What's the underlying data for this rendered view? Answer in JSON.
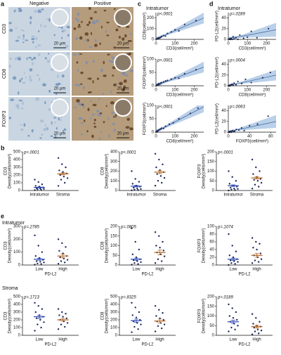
{
  "panel_letters": [
    "a",
    "b",
    "c",
    "d",
    "e"
  ],
  "panel_a": {
    "columns": [
      "Negative",
      "Positive"
    ],
    "rows": [
      "CD3",
      "CD8",
      "FOXP3"
    ],
    "scale_bar": "20 μm"
  },
  "headings": {
    "c": "Intratumor",
    "d": "Intratumor",
    "e_top": "Intratumor",
    "e_bottom": "Stroma"
  },
  "chart_data": [
    {
      "type": "scatter",
      "annotation": "p<.0001",
      "x_label": "CD3(cell/mm²)",
      "y_label": "CD8(cell/mm²)",
      "color": "#1f2a5a",
      "fit_color": "#4a6fa5",
      "band_color": "#a9c4e4",
      "x": [
        5,
        8,
        12,
        15,
        20,
        25,
        30,
        40,
        50,
        60,
        80,
        100,
        120,
        150,
        210
      ],
      "y": [
        3,
        10,
        6,
        15,
        12,
        20,
        28,
        35,
        30,
        55,
        70,
        90,
        80,
        140,
        175
      ],
      "xlim": [
        0,
        250
      ],
      "ylim": [
        0,
        250
      ],
      "xticks": [
        0,
        100,
        200
      ],
      "yticks": [
        0,
        100,
        200
      ],
      "fit": {
        "x": [
          0,
          60,
          250
        ],
        "y": [
          5,
          50,
          200
        ],
        "lower": [
          -10,
          40,
          150
        ],
        "upper": [
          20,
          60,
          250
        ]
      }
    },
    {
      "type": "scatter",
      "annotation": "p<.0001",
      "x_label": "CD3(cell/mm²)",
      "y_label": "FOXP3(cell/mm²)",
      "color": "#1f2a5a",
      "fit_color": "#4a6fa5",
      "band_color": "#a9c4e4",
      "x": [
        5,
        8,
        12,
        15,
        20,
        25,
        30,
        40,
        50,
        60,
        80,
        100,
        120,
        150,
        210
      ],
      "y": [
        2,
        5,
        3,
        8,
        6,
        10,
        12,
        15,
        18,
        20,
        25,
        30,
        28,
        45,
        60
      ],
      "xlim": [
        0,
        250
      ],
      "ylim": [
        0,
        100
      ],
      "xticks": [
        0,
        100,
        200
      ],
      "yticks": [
        0,
        50,
        100
      ],
      "fit": {
        "x": [
          0,
          60,
          250
        ],
        "y": [
          2,
          17,
          70
        ],
        "lower": [
          -5,
          13,
          50
        ],
        "upper": [
          9,
          21,
          90
        ]
      }
    },
    {
      "type": "scatter",
      "annotation": "p<.0001",
      "x_label": "CD8(cell/mm²)",
      "y_label": "FOXP3(cell/mm²)",
      "color": "#1f2a5a",
      "fit_color": "#4a6fa5",
      "band_color": "#a9c4e4",
      "x": [
        2,
        5,
        8,
        10,
        15,
        20,
        25,
        30,
        40,
        50,
        70,
        90,
        120,
        180,
        220
      ],
      "y": [
        1,
        4,
        2,
        6,
        8,
        10,
        12,
        15,
        14,
        22,
        30,
        35,
        50,
        70,
        90
      ],
      "xlim": [
        0,
        250
      ],
      "ylim": [
        0,
        100
      ],
      "xticks": [
        0,
        100,
        200
      ],
      "yticks": [
        0,
        50,
        100
      ],
      "fit": {
        "x": [
          0,
          50,
          250
        ],
        "y": [
          2,
          20,
          95
        ],
        "lower": [
          -5,
          15,
          75
        ],
        "upper": [
          9,
          25,
          115
        ]
      }
    },
    {
      "type": "scatter",
      "annotation": "p=.0289",
      "x_label": "CD3(cell/mm²)",
      "y_label": "PD-L2(cell/mm²)",
      "color": "#1f2a5a",
      "fit_color": "#4a6fa5",
      "band_color": "#a9c4e4",
      "x": [
        5,
        8,
        12,
        15,
        20,
        25,
        30,
        40,
        50,
        60,
        80,
        100,
        120,
        150,
        210
      ],
      "y": [
        0,
        1,
        0,
        2,
        0,
        5,
        1,
        3,
        0,
        8,
        2,
        4,
        15,
        3,
        20
      ],
      "xlim": [
        0,
        250
      ],
      "ylim": [
        0,
        50
      ],
      "xticks": [
        0,
        100,
        200
      ],
      "yticks": [
        0,
        20,
        40
      ],
      "fit": {
        "x": [
          0,
          60,
          250
        ],
        "y": [
          2,
          5,
          18
        ],
        "lower": [
          0,
          3,
          5
        ],
        "upper": [
          4,
          7,
          31
        ]
      }
    },
    {
      "type": "scatter",
      "annotation": "p=.0004",
      "x_label": "CD8(cell/mm²)",
      "y_label": "PD-L2(cell/mm²)",
      "color": "#1f2a5a",
      "fit_color": "#4a6fa5",
      "band_color": "#a9c4e4",
      "x": [
        2,
        5,
        8,
        10,
        15,
        20,
        25,
        30,
        40,
        50,
        70,
        90,
        120,
        180,
        220
      ],
      "y": [
        0,
        0,
        1,
        0,
        2,
        3,
        1,
        5,
        2,
        8,
        4,
        12,
        6,
        15,
        25
      ],
      "xlim": [
        0,
        250
      ],
      "ylim": [
        0,
        50
      ],
      "xticks": [
        0,
        100,
        200
      ],
      "yticks": [
        0,
        20,
        40
      ],
      "fit": {
        "x": [
          0,
          50,
          250
        ],
        "y": [
          1,
          4,
          20
        ],
        "lower": [
          -1,
          3,
          10
        ],
        "upper": [
          3,
          6,
          30
        ]
      }
    },
    {
      "type": "scatter",
      "annotation": "p=.0063",
      "x_label": "FOXP3(cell/mm²)",
      "y_label": "PD-L2(cell/mm²)",
      "color": "#1f2a5a",
      "fit_color": "#4a6fa5",
      "band_color": "#a9c4e4",
      "x": [
        1,
        2,
        3,
        5,
        6,
        8,
        10,
        12,
        15,
        20,
        25,
        30,
        40,
        55,
        75
      ],
      "y": [
        0,
        1,
        0,
        2,
        0,
        3,
        1,
        2,
        5,
        4,
        8,
        3,
        12,
        15,
        30
      ],
      "xlim": [
        0,
        90
      ],
      "ylim": [
        0,
        50
      ],
      "xticks": [
        0,
        40,
        80
      ],
      "yticks": [
        0,
        20,
        40
      ],
      "fit": {
        "x": [
          0,
          15,
          90
        ],
        "y": [
          1,
          4,
          20
        ],
        "lower": [
          -1,
          3,
          8
        ],
        "upper": [
          3,
          6,
          32
        ]
      }
    },
    {
      "type": "dotplot",
      "annotation": "p<.0001",
      "y_label": [
        "CD3",
        "Density(cells/mm²)"
      ],
      "categories": [
        "Intratumor",
        "Stroma"
      ],
      "ylim": [
        0,
        500
      ],
      "yticks": [
        0,
        100,
        200,
        300,
        400,
        500
      ],
      "groups": [
        {
          "color": "#1f2a5a",
          "mean_color": "#2b46b5",
          "values": [
            5,
            10,
            15,
            20,
            25,
            30,
            40,
            50,
            60,
            80,
            110,
            140
          ],
          "mean": 40,
          "sem": 6
        },
        {
          "color": "#1f2a5a",
          "mean_color": "#b5651d",
          "values": [
            60,
            100,
            140,
            160,
            180,
            200,
            220,
            240,
            260,
            300,
            340,
            420
          ],
          "mean": 215,
          "sem": 14
        }
      ]
    },
    {
      "type": "dotplot",
      "annotation": "p<.0001",
      "y_label": [
        "CD8",
        "Density(cells/mm²)"
      ],
      "categories": [
        "Intratumor",
        "Stroma"
      ],
      "ylim": [
        0,
        400
      ],
      "yticks": [
        0,
        100,
        200,
        300,
        400
      ],
      "groups": [
        {
          "color": "#1f2a5a",
          "mean_color": "#2b46b5",
          "values": [
            2,
            5,
            10,
            15,
            20,
            30,
            40,
            50,
            70,
            90,
            120,
            200
          ],
          "mean": 45,
          "sem": 8
        },
        {
          "color": "#1f2a5a",
          "mean_color": "#b5651d",
          "values": [
            50,
            80,
            100,
            130,
            150,
            170,
            190,
            210,
            240,
            270,
            320,
            380
          ],
          "mean": 190,
          "sem": 15
        }
      ]
    },
    {
      "type": "dotplot",
      "annotation": "p<.0001",
      "y_label": [
        "FOXP3",
        "Density(cells/mm²)"
      ],
      "categories": [
        "Intratumor",
        "Stroma"
      ],
      "ylim": [
        0,
        200
      ],
      "yticks": [
        0,
        50,
        100,
        150,
        200
      ],
      "groups": [
        {
          "color": "#1f2a5a",
          "mean_color": "#2b46b5",
          "values": [
            0,
            2,
            5,
            8,
            10,
            15,
            20,
            25,
            35,
            50,
            70,
            100
          ],
          "mean": 25,
          "sem": 4
        },
        {
          "color": "#1f2a5a",
          "mean_color": "#b5651d",
          "values": [
            10,
            20,
            30,
            40,
            50,
            55,
            60,
            70,
            85,
            100,
            120,
            160
          ],
          "mean": 65,
          "sem": 6
        }
      ]
    },
    {
      "type": "dotplot",
      "annotation": "p=.2785",
      "y_label": [
        "CD3",
        "Density(cells/mm²)"
      ],
      "x_label": "PD-L2",
      "categories": [
        "Low",
        "High"
      ],
      "ylim": [
        0,
        300
      ],
      "yticks": [
        0,
        100,
        200,
        300
      ],
      "groups": [
        {
          "color": "#1f2a5a",
          "mean_color": "#2b46b5",
          "values": [
            3,
            8,
            12,
            20,
            25,
            30,
            40,
            55,
            70,
            100,
            150,
            230
          ],
          "mean": 45,
          "sem": 8
        },
        {
          "color": "#1f2a5a",
          "mean_color": "#b5651d",
          "values": [
            10,
            20,
            30,
            40,
            50,
            60,
            70,
            90,
            110,
            140,
            170,
            200
          ],
          "mean": 70,
          "sem": 14
        }
      ]
    },
    {
      "type": "dotplot",
      "annotation": "p=.0805",
      "y_label": [
        "CD8",
        "Density(cells/mm²)"
      ],
      "x_label": "PD-L2",
      "categories": [
        "Low",
        "High"
      ],
      "ylim": [
        0,
        200
      ],
      "yticks": [
        0,
        50,
        100,
        150,
        200
      ],
      "groups": [
        {
          "color": "#1f2a5a",
          "mean_color": "#2b46b5",
          "values": [
            2,
            5,
            10,
            15,
            20,
            25,
            30,
            40,
            55,
            80,
            120,
            190
          ],
          "mean": 30,
          "sem": 6
        },
        {
          "color": "#1f2a5a",
          "mean_color": "#b5651d",
          "values": [
            10,
            20,
            30,
            45,
            55,
            65,
            75,
            90,
            100,
            120,
            150,
            170
          ],
          "mean": 65,
          "sem": 12
        }
      ]
    },
    {
      "type": "dotplot",
      "annotation": "p=.1074",
      "y_label": [
        "FOXP3",
        "Density(cells/mm²)"
      ],
      "x_label": "PD-L2",
      "categories": [
        "Low",
        "High"
      ],
      "ylim": [
        0,
        100
      ],
      "yticks": [
        0,
        20,
        40,
        60,
        80,
        100
      ],
      "groups": [
        {
          "color": "#1f2a5a",
          "mean_color": "#2b46b5",
          "values": [
            0,
            3,
            5,
            8,
            10,
            12,
            15,
            20,
            25,
            35,
            50,
            80
          ],
          "mean": 15,
          "sem": 3
        },
        {
          "color": "#1f2a5a",
          "mean_color": "#b5651d",
          "values": [
            5,
            8,
            12,
            15,
            20,
            25,
            30,
            40,
            45,
            55,
            60,
            70
          ],
          "mean": 25,
          "sem": 5
        }
      ]
    },
    {
      "type": "dotplot",
      "annotation": "p=.1713",
      "y_label": [
        "CD3",
        "Density(cells/mm²)"
      ],
      "x_label": "PD-L2",
      "categories": [
        "Low",
        "High"
      ],
      "ylim": [
        0,
        500
      ],
      "yticks": [
        0,
        100,
        200,
        300,
        400,
        500
      ],
      "groups": [
        {
          "color": "#1f2a5a",
          "mean_color": "#2b46b5",
          "values": [
            60,
            100,
            140,
            170,
            200,
            220,
            240,
            260,
            300,
            340,
            380,
            420
          ],
          "mean": 240,
          "sem": 20
        },
        {
          "color": "#1f2a5a",
          "mean_color": "#b5651d",
          "values": [
            80,
            110,
            140,
            160,
            180,
            200,
            220,
            240,
            260,
            280,
            300,
            340
          ],
          "mean": 200,
          "sem": 18
        }
      ]
    },
    {
      "type": "dotplot",
      "annotation": "p=.8325",
      "y_label": [
        "CD8",
        "Density(cells/mm²)"
      ],
      "x_label": "PD-L2",
      "categories": [
        "Low",
        "High"
      ],
      "ylim": [
        0,
        500
      ],
      "yticks": [
        0,
        100,
        200,
        300,
        400,
        500
      ],
      "groups": [
        {
          "color": "#1f2a5a",
          "mean_color": "#2b46b5",
          "values": [
            40,
            80,
            110,
            140,
            160,
            180,
            200,
            230,
            260,
            300,
            360,
            420
          ],
          "mean": 190,
          "sem": 20
        },
        {
          "color": "#1f2a5a",
          "mean_color": "#b5651d",
          "values": [
            50,
            90,
            120,
            140,
            160,
            180,
            200,
            220,
            250,
            290,
            330,
            380
          ],
          "mean": 185,
          "sem": 25
        }
      ]
    },
    {
      "type": "dotplot",
      "annotation": "p=.0189",
      "y_label": [
        "FOXP3",
        "Density(cells/mm²)"
      ],
      "x_label": "PD-L2",
      "categories": [
        "Low",
        "High"
      ],
      "ylim": [
        0,
        200
      ],
      "yticks": [
        0,
        50,
        100,
        150,
        200
      ],
      "groups": [
        {
          "color": "#1f2a5a",
          "mean_color": "#2b46b5",
          "values": [
            20,
            30,
            40,
            50,
            60,
            70,
            80,
            90,
            100,
            120,
            140,
            160
          ],
          "mean": 70,
          "sem": 8
        },
        {
          "color": "#1f2a5a",
          "mean_color": "#b5651d",
          "values": [
            5,
            10,
            20,
            25,
            30,
            40,
            45,
            50,
            60,
            70,
            90,
            110
          ],
          "mean": 45,
          "sem": 7
        }
      ]
    }
  ]
}
